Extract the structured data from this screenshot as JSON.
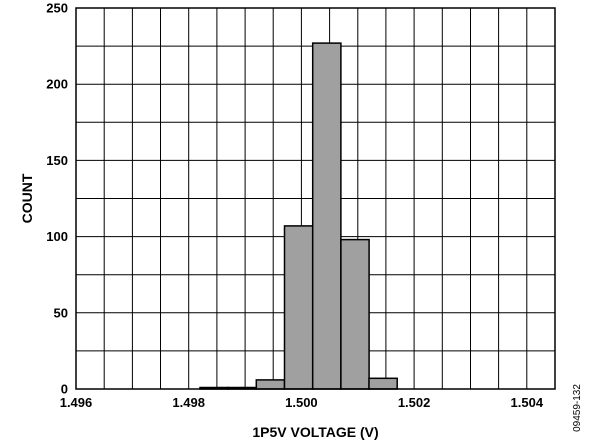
{
  "chart_data": {
    "type": "bar",
    "title": "",
    "xlabel": "1P5V VOLTAGE (V)",
    "ylabel": "COUNT",
    "xlim": [
      1.496,
      1.5045
    ],
    "ylim": [
      0,
      250
    ],
    "x_ticks": [
      "1.496",
      "1.498",
      "1.500",
      "1.502",
      "1.504"
    ],
    "x_tick_values": [
      1.496,
      1.498,
      1.5,
      1.502,
      1.504
    ],
    "y_ticks": [
      "0",
      "50",
      "100",
      "150",
      "200",
      "250"
    ],
    "y_tick_values": [
      0,
      50,
      100,
      150,
      200,
      250
    ],
    "grid": true,
    "bin_width": 0.0005,
    "bins": [
      {
        "start": 1.4982,
        "end": 1.4987,
        "count": 1
      },
      {
        "start": 1.4987,
        "end": 1.4992,
        "count": 1
      },
      {
        "start": 1.4992,
        "end": 1.4997,
        "count": 6
      },
      {
        "start": 1.4997,
        "end": 1.5002,
        "count": 107
      },
      {
        "start": 1.5002,
        "end": 1.5007,
        "count": 227
      },
      {
        "start": 1.5007,
        "end": 1.5012,
        "count": 98
      },
      {
        "start": 1.5012,
        "end": 1.5017,
        "count": 7
      }
    ],
    "colors": {
      "bar_fill": "#a0a0a0",
      "bar_stroke": "#000000",
      "grid": "#000000"
    }
  },
  "figure_id": "09459-132"
}
